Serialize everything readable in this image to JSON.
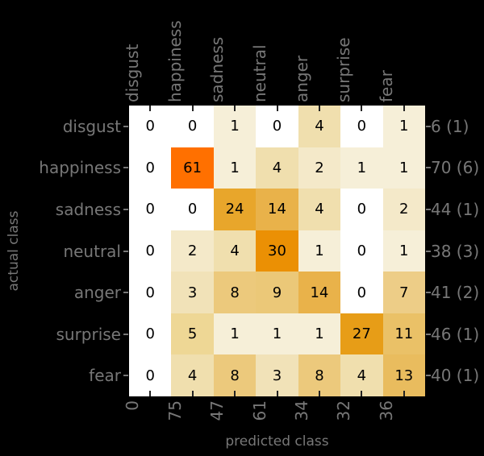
{
  "chart_data": {
    "type": "heatmap",
    "title": "",
    "xlabel": "predicted class",
    "ylabel": "actual class",
    "x_categories": [
      "disgust",
      "happiness",
      "sadness",
      "neutral",
      "anger",
      "surprise",
      "fear"
    ],
    "y_categories": [
      "disgust",
      "happiness",
      "sadness",
      "neutral",
      "anger",
      "surprise",
      "fear"
    ],
    "values": [
      [
        0,
        0,
        1,
        0,
        4,
        0,
        1
      ],
      [
        0,
        61,
        1,
        4,
        2,
        1,
        1
      ],
      [
        0,
        0,
        24,
        14,
        4,
        0,
        2
      ],
      [
        0,
        2,
        4,
        30,
        1,
        0,
        1
      ],
      [
        0,
        3,
        8,
        9,
        14,
        0,
        7
      ],
      [
        0,
        5,
        1,
        1,
        1,
        27,
        11
      ],
      [
        0,
        4,
        8,
        3,
        8,
        4,
        13
      ]
    ],
    "row_totals": [
      "6 (1)",
      "70 (6)",
      "44 (1)",
      "38 (3)",
      "41 (2)",
      "46 (1)",
      "40 (1)"
    ],
    "col_totals": [
      "0",
      "75",
      "47",
      "61",
      "34",
      "32",
      "36"
    ],
    "value_colormap": {
      "0": "#ffffff",
      "1": "#f6efd8",
      "2": "#f4e9c9",
      "3": "#f1e2b8",
      "4": "#f0dfae",
      "5": "#eed795",
      "7": "#edcd87",
      "8": "#ecc97c",
      "9": "#ebc878",
      "11": "#eac167",
      "13": "#e9bc5e",
      "14": "#e9b24a",
      "24": "#e8a62b",
      "27": "#e79d17",
      "30": "#eb9004",
      "61": "#ff7000"
    },
    "colors": {
      "background": "#000000",
      "label_text": "#777777",
      "cell_text": "#000000",
      "inner_tick": "#222222",
      "outer_tick": "#777777"
    },
    "legend_position": "none",
    "grid": false
  }
}
